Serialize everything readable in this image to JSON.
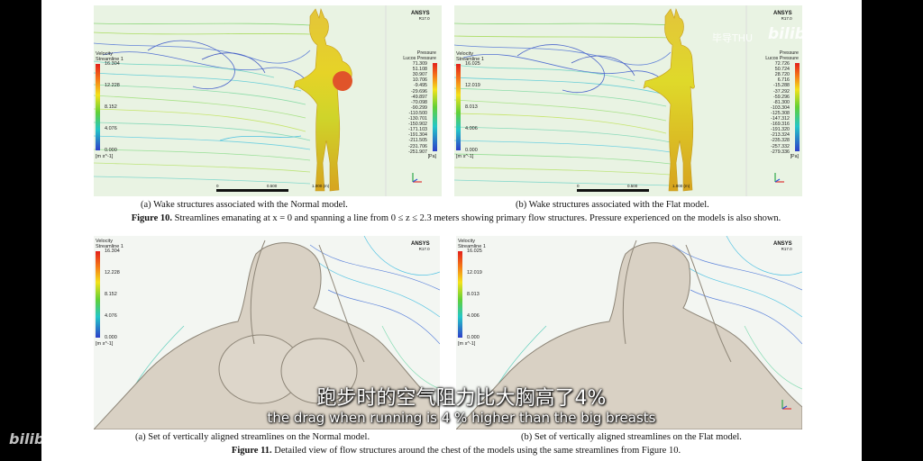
{
  "top_left": {
    "velocity_title": "Velocity",
    "velocity_sub": "Streamline 1",
    "velocity_ticks": [
      "16.304",
      "12.228",
      "8.152",
      "4.076",
      "0.000"
    ],
    "velocity_unit": "[m s^-1]",
    "ansys": "ANSYS",
    "ansys_ver": "R17.0",
    "pressure_title": "Pressure",
    "pressure_sub": "Lucos Pressure",
    "pressure_ticks": [
      "71.309",
      "51.108",
      "30.907",
      "10.706",
      "-9.495",
      "-29.696",
      "-49.897",
      "-70.098",
      "-90.299",
      "-110.500",
      "-130.701",
      "-150.902",
      "-171.103",
      "-191.304",
      "-211.505",
      "-231.706",
      "-251.907"
    ],
    "pressure_unit": "[Pa]",
    "scale_labels": [
      "0",
      "0.500",
      "1.000 (m)"
    ],
    "caption": "(a)  Wake structures associated with the Normal model."
  },
  "top_right": {
    "velocity_title": "Velocity",
    "velocity_sub": "Streamline 1",
    "velocity_ticks": [
      "16.025",
      "12.019",
      "8.013",
      "4.006",
      "0.000"
    ],
    "velocity_unit": "[m s^-1]",
    "ansys": "ANSYS",
    "ansys_ver": "R17.0",
    "pressure_title": "Pressure",
    "pressure_sub": "Lucos Pressure",
    "pressure_ticks": [
      "72.726",
      "50.724",
      "28.720",
      "6.716",
      "-15.288",
      "-37.292",
      "-59.296",
      "-81.300",
      "-103.304",
      "-125.308",
      "-147.312",
      "-169.316",
      "-191.320",
      "-213.324",
      "-235.328",
      "-257.332",
      "-279.336"
    ],
    "pressure_unit": "[Pa]",
    "scale_labels": [
      "0",
      "0.500",
      "1.000 (m)"
    ],
    "caption": "(b)  Wake structures associated with the Flat model."
  },
  "figure10": {
    "label": "Figure 10.",
    "text": " Streamlines emanating at x = 0 and spanning a line from 0 ≤ z ≤ 2.3 meters showing primary flow structures. Pressure experienced on the models is also shown."
  },
  "bottom_left": {
    "velocity_title": "Velocity",
    "velocity_sub": "Streamline 1",
    "velocity_ticks": [
      "16.304",
      "12.228",
      "8.152",
      "4.076",
      "0.000"
    ],
    "velocity_unit": "[m s^-1]",
    "ansys": "ANSYS",
    "ansys_ver": "R17.0",
    "caption": "(a)  Set of vertically aligned streamlines on the Normal model."
  },
  "bottom_right": {
    "velocity_title": "Velocity",
    "velocity_sub": "Streamline 1",
    "velocity_ticks": [
      "16.025",
      "12.019",
      "8.013",
      "4.006",
      "0.000"
    ],
    "velocity_unit": "[m s^-1]",
    "ansys": "ANSYS",
    "ansys_ver": "R17.0",
    "caption": "(b)  Set of vertically aligned streamlines on the Flat model."
  },
  "figure11": {
    "label": "Figure 11.",
    "text": " Detailed view of flow structures around the chest of the models using the same streamlines from Figure 10."
  },
  "subtitles": {
    "chinese": "跑步时的空气阻力比大胸高了4%",
    "english": "the drag when running is 4 % higher than the big breasts"
  },
  "watermarks": {
    "top_right": "毕导THU",
    "logo": "bilibili",
    "bottom_left": "bilibili"
  }
}
